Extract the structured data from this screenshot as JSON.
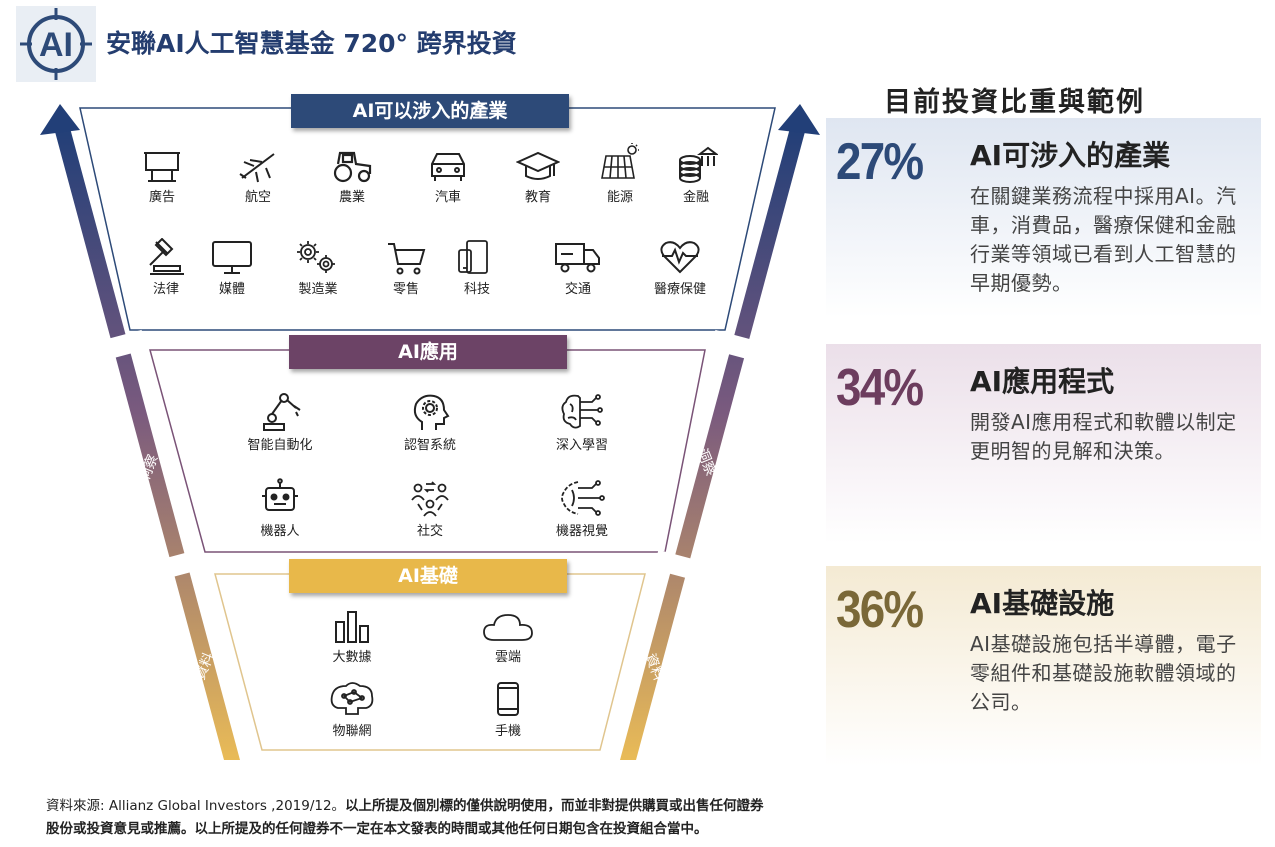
{
  "header": {
    "logo_text": "AI",
    "title": "安聯AI人工智慧基金  720° 跨界投資"
  },
  "colors": {
    "navy": "#2d4a78",
    "purple": "#6c4366",
    "gold": "#e8b84a"
  },
  "funnel": {
    "industries": {
      "banner": "AI可以涉入的產業",
      "items": [
        {
          "label": "廣告",
          "icon": "billboard-icon"
        },
        {
          "label": "航空",
          "icon": "airplane-icon"
        },
        {
          "label": "農業",
          "icon": "tractor-icon"
        },
        {
          "label": "汽車",
          "icon": "car-icon"
        },
        {
          "label": "教育",
          "icon": "graduation-cap-icon"
        },
        {
          "label": "能源",
          "icon": "solar-panel-icon"
        },
        {
          "label": "金融",
          "icon": "coins-bank-icon"
        },
        {
          "label": "法律",
          "icon": "gavel-icon"
        },
        {
          "label": "媒體",
          "icon": "monitor-icon"
        },
        {
          "label": "製造業",
          "icon": "gears-icon"
        },
        {
          "label": "零售",
          "icon": "shopping-cart-icon"
        },
        {
          "label": "科技",
          "icon": "devices-icon"
        },
        {
          "label": "交通",
          "icon": "truck-icon"
        },
        {
          "label": "醫療保健",
          "icon": "heart-pulse-icon"
        }
      ]
    },
    "applications": {
      "banner": "AI應用",
      "items": [
        {
          "label": "智能自動化",
          "icon": "robot-arm-icon"
        },
        {
          "label": "認智系統",
          "icon": "head-gear-icon"
        },
        {
          "label": "深入學習",
          "icon": "brain-circuit-icon"
        },
        {
          "label": "機器人",
          "icon": "robot-face-icon"
        },
        {
          "label": "社交",
          "icon": "people-network-icon"
        },
        {
          "label": "機器視覺",
          "icon": "vision-circuit-icon"
        }
      ]
    },
    "infrastructure": {
      "banner": "AI基礎",
      "items": [
        {
          "label": "大數據",
          "icon": "bar-chart-icon"
        },
        {
          "label": "雲端",
          "icon": "cloud-icon"
        },
        {
          "label": "物聯網",
          "icon": "iot-brain-icon"
        },
        {
          "label": "手機",
          "icon": "mobile-phone-icon"
        }
      ]
    },
    "arrow_labels": {
      "insight_left": "洞察",
      "insight_right": "洞察",
      "data_left": "資料",
      "data_right": "資料"
    }
  },
  "right": {
    "title": "目前投資比重與範例",
    "panels": [
      {
        "percent": "27%",
        "title": "AI可涉入的產業",
        "desc": "在關鍵業務流程中採用AI。汽車，消費品，醫療保健和金融行業等領域已看到人工智慧的早期優勢。"
      },
      {
        "percent": "34%",
        "title": "AI應用程式",
        "desc": "開發AI應用程式和軟體以制定更明智的見解和決策。"
      },
      {
        "percent": "36%",
        "title": "AI基礎設施",
        "desc": "AI基礎設施包括半導體，電子零組件和基礎設施軟體領域的公司。"
      }
    ]
  },
  "footer": {
    "line1_normal": "資料來源: Allianz Global Investors ,2019/12。",
    "line1_bold": "以上所提及個別標的僅供說明使用，而並非對提供購買或出售任何證券",
    "line2": "股份或投資意見或推薦。以上所提及的任何證券不一定在本文發表的時間或其他任何日期包含在投資組合當中。"
  }
}
